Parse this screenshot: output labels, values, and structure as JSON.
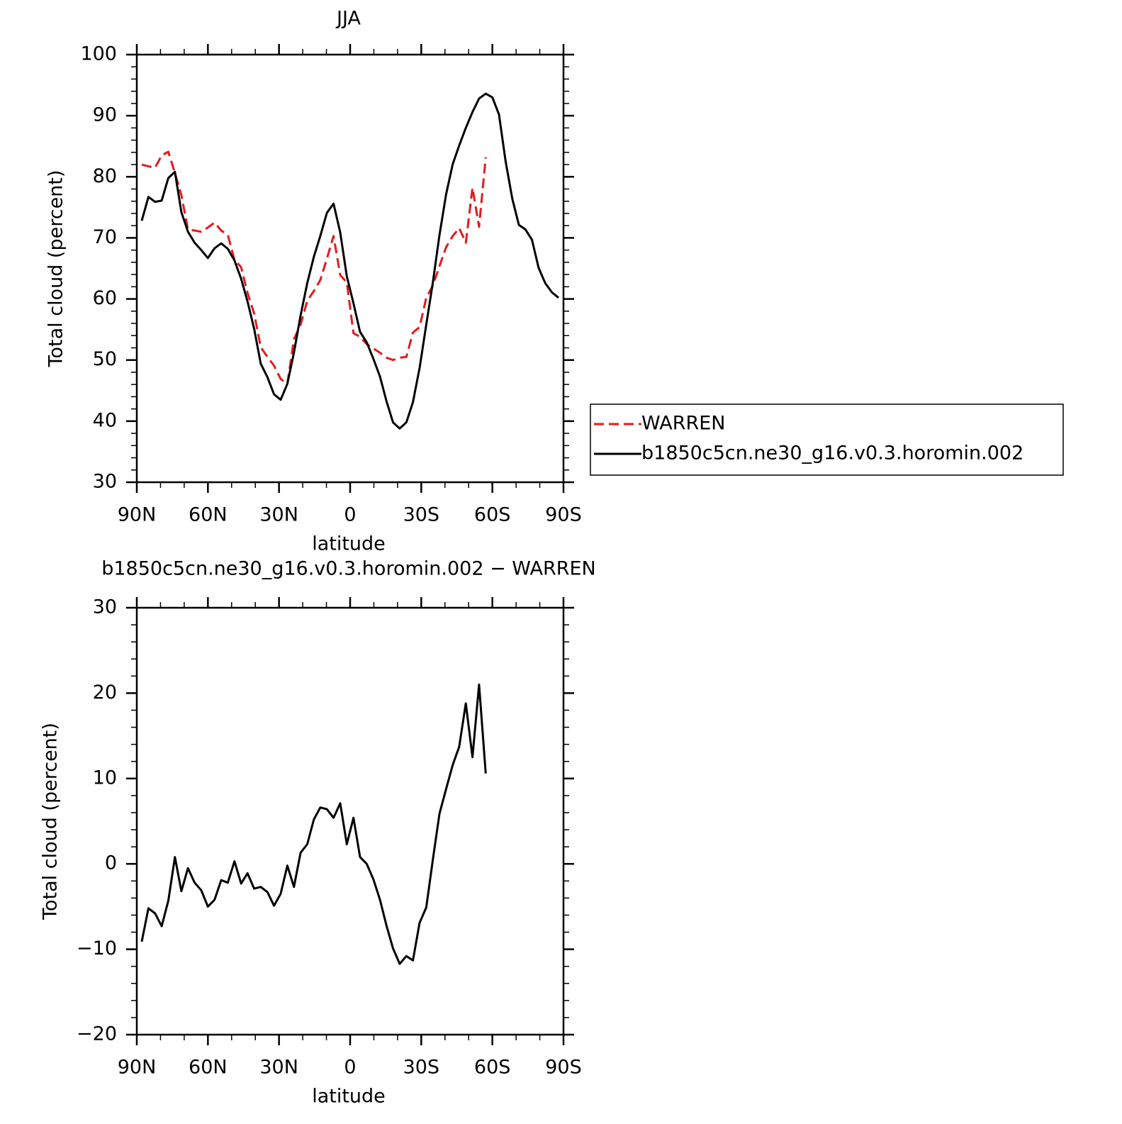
{
  "chart_data": [
    {
      "type": "line",
      "title": "JJA",
      "xlabel": "latitude",
      "ylabel": "Total cloud (percent)",
      "x": [
        87.9,
        85.1,
        82.3,
        79.5,
        76.7,
        73.9,
        71.2,
        68.4,
        65.6,
        62.8,
        60.0,
        57.2,
        54.4,
        51.6,
        48.8,
        46.0,
        43.3,
        40.5,
        37.7,
        34.9,
        32.1,
        29.3,
        26.5,
        23.7,
        20.9,
        18.1,
        15.3,
        12.6,
        9.8,
        7.0,
        4.2,
        1.4,
        -1.4,
        -4.2,
        -7.0,
        -9.8,
        -12.6,
        -15.3,
        -18.1,
        -20.9,
        -23.7,
        -26.5,
        -29.3,
        -32.1,
        -34.9,
        -37.7,
        -40.5,
        -43.3,
        -46.0,
        -48.8,
        -51.6,
        -54.4,
        -57.2,
        -60.0,
        -62.8,
        -65.6,
        -68.4,
        -71.2,
        -73.9,
        -76.7,
        -79.5,
        -82.3,
        -85.1,
        -87.9
      ],
      "xlim": [
        90,
        -90
      ],
      "xticks": [
        {
          "value": 90,
          "label": "90N"
        },
        {
          "value": 60,
          "label": "60N"
        },
        {
          "value": 30,
          "label": "30N"
        },
        0,
        {
          "value": -30,
          "label": "30S"
        },
        {
          "value": -60,
          "label": "60S"
        },
        {
          "value": -90,
          "label": "90S"
        }
      ],
      "xminor_ticks": [
        80,
        70,
        50,
        40,
        20,
        10,
        -10,
        -20,
        -40,
        -50,
        -70,
        -80
      ],
      "ylim": [
        30,
        100
      ],
      "yticks": [
        30,
        40,
        50,
        60,
        70,
        80,
        90,
        100
      ],
      "yminor_ticks": [
        32,
        34,
        36,
        38,
        42,
        44,
        46,
        48,
        52,
        54,
        56,
        58,
        62,
        64,
        66,
        68,
        72,
        74,
        76,
        78,
        82,
        84,
        86,
        88,
        92,
        94,
        96,
        98
      ],
      "legend": "right",
      "series": [
        {
          "name": "WARREN",
          "color": "#e41a1c",
          "dash": "dashed",
          "values": [
            82.0,
            81.7,
            81.5,
            83.5,
            84.1,
            80.6,
            77.0,
            71.4,
            71.2,
            71.0,
            71.7,
            72.5,
            71.2,
            70.5,
            66.4,
            65.2,
            61.0,
            57.6,
            52.1,
            50.5,
            49.1,
            46.9,
            46.1,
            53.4,
            55.8,
            59.7,
            61.3,
            63.1,
            66.6,
            70.3,
            63.9,
            62.7,
            54.4,
            53.8,
            52.6,
            51.9,
            51.2,
            50.4,
            50.0,
            50.4,
            50.5,
            54.5,
            55.4,
            60.2,
            62.2,
            65.4,
            68.5,
            70.3,
            71.6,
            69.2,
            78.2,
            71.8,
            83.2,
            null,
            null,
            null,
            null,
            null,
            null,
            null,
            null,
            null,
            null,
            null
          ]
        },
        {
          "name": "b1850c5cn.ne30_g16.v0.3.horomin.002",
          "color": "#000000",
          "dash": "solid",
          "values": [
            72.8,
            76.7,
            75.9,
            76.1,
            79.8,
            80.8,
            74.2,
            71.0,
            69.2,
            68.0,
            66.7,
            68.3,
            69.1,
            68.2,
            66.3,
            63.3,
            59.6,
            55.1,
            49.4,
            47.2,
            44.4,
            43.5,
            46.1,
            51.2,
            57.3,
            62.6,
            66.9,
            70.3,
            74.1,
            75.6,
            70.9,
            63.7,
            59.3,
            54.6,
            52.9,
            50.2,
            47.3,
            43.3,
            39.8,
            38.8,
            39.8,
            43.1,
            48.7,
            55.8,
            62.7,
            70.5,
            77.2,
            82.1,
            85.1,
            88.0,
            90.6,
            92.8,
            93.6,
            93.0,
            90.2,
            82.5,
            76.4,
            72.1,
            71.4,
            69.7,
            65.1,
            62.6,
            61.1,
            60.2
          ]
        }
      ]
    },
    {
      "type": "line",
      "title": "b1850c5cn.ne30_g16.v0.3.horomin.002 − WARREN",
      "xlabel": "latitude",
      "ylabel": "Total cloud (percent)",
      "x": [
        87.9,
        85.1,
        82.3,
        79.5,
        76.7,
        73.9,
        71.2,
        68.4,
        65.6,
        62.8,
        60.0,
        57.2,
        54.4,
        51.6,
        48.8,
        46.0,
        43.3,
        40.5,
        37.7,
        34.9,
        32.1,
        29.3,
        26.5,
        23.7,
        20.9,
        18.1,
        15.3,
        12.6,
        9.8,
        7.0,
        4.2,
        1.4,
        -1.4,
        -4.2,
        -7.0,
        -9.8,
        -12.6,
        -15.3,
        -18.1,
        -20.9,
        -23.7,
        -26.5,
        -29.3,
        -32.1,
        -34.9,
        -37.7,
        -40.5,
        -43.3,
        -46.0,
        -48.8,
        -51.6,
        -54.4,
        -57.2,
        -60.0,
        -62.8,
        -65.6,
        -68.4,
        -71.2,
        -73.9,
        -76.7,
        -79.5,
        -82.3,
        -85.1,
        -87.9
      ],
      "xlim": [
        90,
        -90
      ],
      "xticks": [
        {
          "value": 90,
          "label": "90N"
        },
        {
          "value": 60,
          "label": "60N"
        },
        {
          "value": 30,
          "label": "30N"
        },
        0,
        {
          "value": -30,
          "label": "30S"
        },
        {
          "value": -60,
          "label": "60S"
        },
        {
          "value": -90,
          "label": "90S"
        }
      ],
      "xminor_ticks": [
        80,
        70,
        50,
        40,
        20,
        10,
        -10,
        -20,
        -40,
        -50,
        -70,
        -80
      ],
      "ylim": [
        -20,
        30
      ],
      "yticks": [
        {
          "value": -20,
          "label": "−20"
        },
        {
          "value": -10,
          "label": "−10"
        },
        0,
        10,
        20,
        30
      ],
      "yminor_ticks": [
        -18,
        -16,
        -14,
        -12,
        -8,
        -6,
        -4,
        -2,
        2,
        4,
        6,
        8,
        12,
        14,
        16,
        18,
        22,
        24,
        26,
        28
      ],
      "series": [
        {
          "color": "#000000",
          "dash": "solid",
          "values": [
            -9.1,
            -5.2,
            -5.8,
            -7.3,
            -4.3,
            0.8,
            -3.2,
            -0.5,
            -2.2,
            -3.1,
            -5.0,
            -4.2,
            -1.9,
            -2.2,
            0.3,
            -2.3,
            -1.1,
            -2.9,
            -2.7,
            -3.3,
            -4.9,
            -3.5,
            -0.2,
            -2.7,
            1.3,
            2.3,
            5.2,
            6.6,
            6.4,
            5.4,
            7.1,
            2.3,
            5.4,
            0.8,
            0.0,
            -1.8,
            -4.2,
            -7.2,
            -9.9,
            -11.7,
            -10.8,
            -11.3,
            -6.9,
            -5.1,
            0.5,
            5.9,
            8.8,
            11.6,
            13.7,
            18.8,
            12.5,
            21.0,
            10.6,
            null,
            null,
            null,
            null,
            null,
            null,
            null,
            null,
            null,
            null,
            null
          ]
        }
      ]
    }
  ]
}
